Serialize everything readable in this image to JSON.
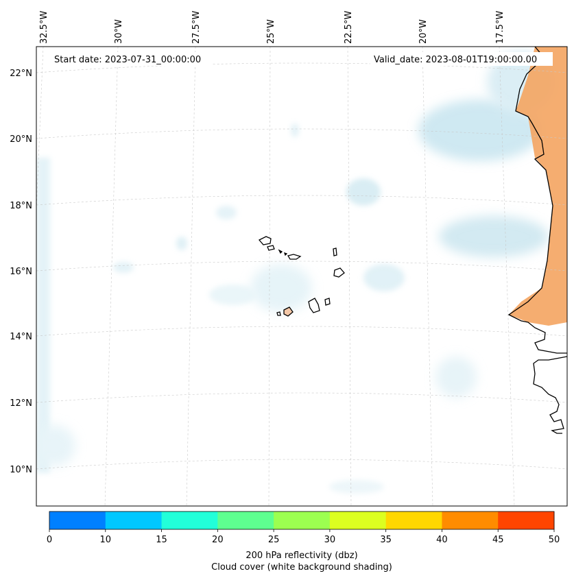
{
  "map": {
    "start_date": "Start date: 2023-07-31_00:00:00",
    "valid_date": "Valid_date: 2023-08-01T19:00:00.00",
    "longitude_labels": [
      "32.5°W",
      "30°W",
      "27.5°W",
      "25°W",
      "22.5°W",
      "20°W",
      "17.5°W"
    ],
    "latitude_labels": [
      "22°N",
      "20°N",
      "18°N",
      "16°N",
      "14°N",
      "12°N",
      "10°N"
    ]
  },
  "colorbar": {
    "ticks": [
      "0",
      "10",
      "15",
      "20",
      "25",
      "30",
      "35",
      "40",
      "45",
      "50"
    ],
    "colors": [
      "#0080ff",
      "#00c8ff",
      "#22ffd9",
      "#5eff90",
      "#9cff50",
      "#dcff20",
      "#ffd700",
      "#ff8c00",
      "#ff4500"
    ],
    "label_line1": "200 hPa reflectivity (dbz)",
    "label_line2": "Cloud cover (white background shading)"
  },
  "colors": {
    "cloud": "#a8d8e8",
    "land_orange": "#f4a460",
    "grid": "#c8c8c8"
  }
}
